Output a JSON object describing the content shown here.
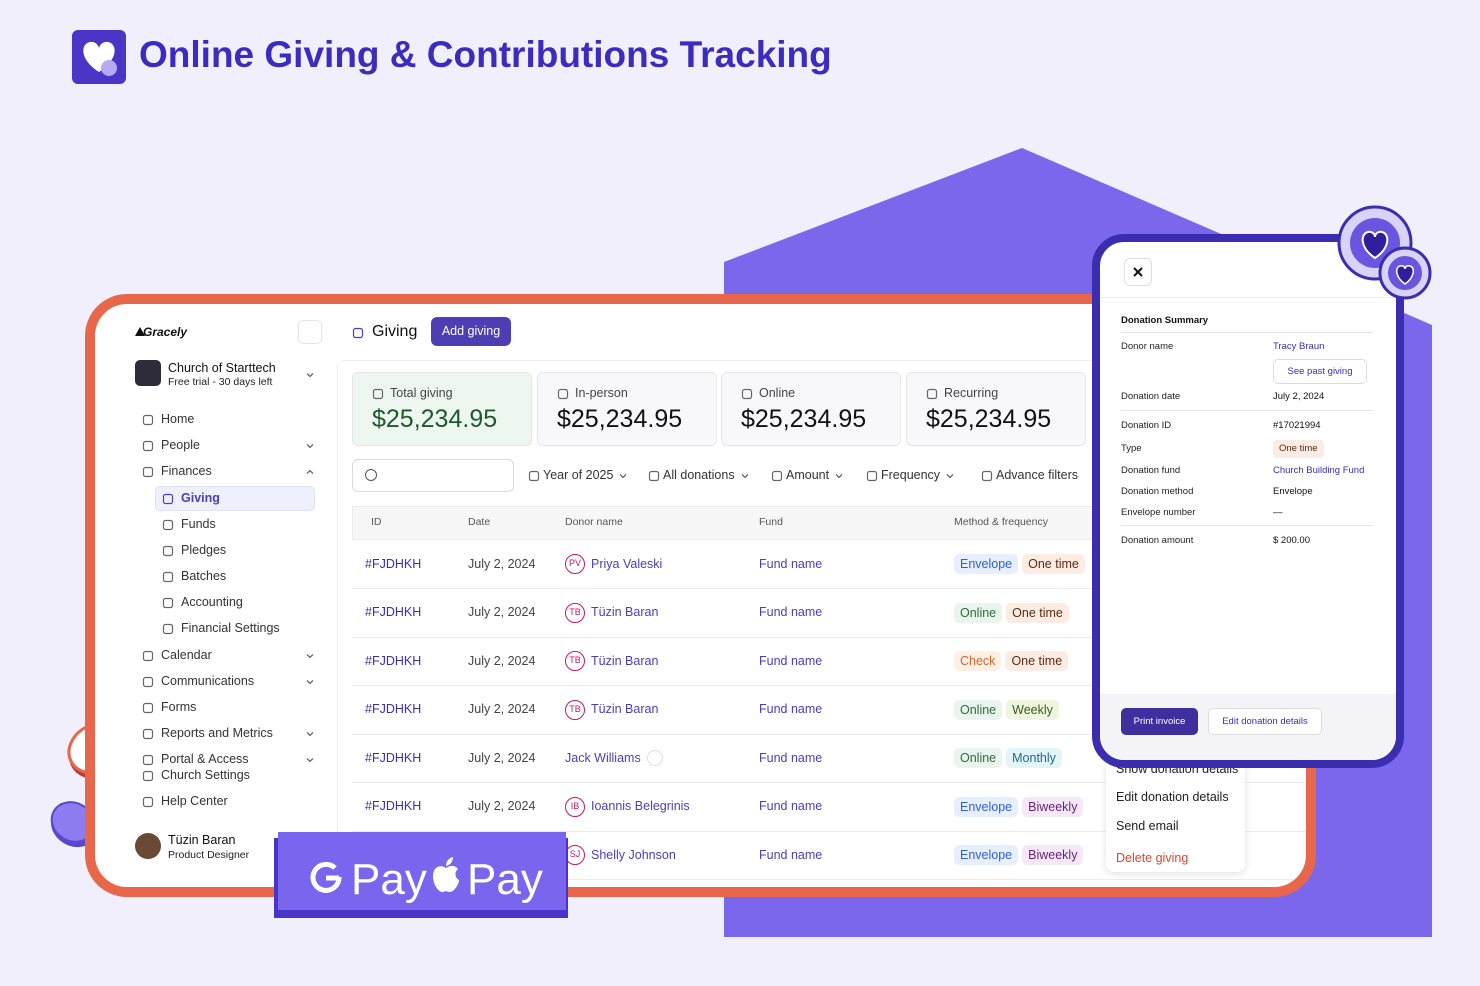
{
  "header": {
    "title": "Online Giving & Contributions Tracking"
  },
  "sidebar": {
    "brand": "Gracely",
    "org_name": "Church of Starttech",
    "org_plan": "Free trial - 30 days left",
    "nav": [
      {
        "label": "Home"
      },
      {
        "label": "People",
        "expandable": true
      },
      {
        "label": "Finances",
        "expandable": true,
        "children": [
          "Giving",
          "Funds",
          "Pledges",
          "Batches",
          "Accounting",
          "Financial Settings"
        ]
      },
      {
        "label": "Calendar",
        "expandable": true
      },
      {
        "label": "Communications",
        "expandable": true
      },
      {
        "label": "Forms"
      },
      {
        "label": "Reports and Metrics",
        "expandable": true
      },
      {
        "label": "Portal & Access",
        "expandable": true
      }
    ],
    "bottom_nav": [
      "Church Settings",
      "Help Center"
    ],
    "user": {
      "name": "Tüzin Baran",
      "role": "Product Designer"
    }
  },
  "main": {
    "title": "Giving",
    "add_button": "Add giving",
    "stats": [
      {
        "label": "Total giving",
        "value": "$25,234.95"
      },
      {
        "label": "In-person",
        "value": "$25,234.95"
      },
      {
        "label": "Online",
        "value": "$25,234.95"
      },
      {
        "label": "Recurring",
        "value": "$25,234.95"
      }
    ],
    "filters": [
      "Year of 2025",
      "All donations",
      "Amount",
      "Frequency",
      "Advance filters"
    ],
    "table": {
      "columns": [
        "ID",
        "Date",
        "Donor name",
        "Fund",
        "Method & frequency"
      ],
      "rows": [
        {
          "id": "#FJDHKH",
          "date": "July 2, 2024",
          "initials": "PV",
          "donor": "Priya Valeski",
          "fund": "Fund name",
          "method": "Envelope",
          "frequency": "One time"
        },
        {
          "id": "#FJDHKH",
          "date": "July 2, 2024",
          "initials": "TB",
          "donor": "Tüzin Baran",
          "fund": "Fund name",
          "method": "Online",
          "frequency": "One time"
        },
        {
          "id": "#FJDHKH",
          "date": "July 2, 2024",
          "initials": "TB",
          "donor": "Tüzin Baran",
          "fund": "Fund name",
          "method": "Check",
          "frequency": "One time"
        },
        {
          "id": "#FJDHKH",
          "date": "July 2, 2024",
          "initials": "TB",
          "donor": "Tüzin Baran",
          "fund": "Fund name",
          "method": "Online",
          "frequency": "Weekly"
        },
        {
          "id": "#FJDHKH",
          "date": "July 2, 2024",
          "donor": "Jack Williams",
          "fund": "Fund name",
          "method": "Online",
          "frequency": "Monthly"
        },
        {
          "id": "#FJDHKH",
          "date": "July 2, 2024",
          "initials": "IB",
          "donor": "Ioannis Belegrinis",
          "fund": "Fund name",
          "method": "Envelope",
          "frequency": "Biweekly"
        },
        {
          "id": "#FJDHKH",
          "date": "July 2, 2024",
          "initials": "SJ",
          "donor": "Shelly Johnson",
          "fund": "Fund name",
          "method": "Envelope",
          "frequency": "Biweekly"
        }
      ]
    }
  },
  "context_menu": [
    "Show donation details",
    "Edit donation details",
    "Send email",
    "Delete giving"
  ],
  "summary": {
    "title": "Donation Summary",
    "past_button": "See past giving",
    "fields": [
      {
        "label": "Donor name",
        "value": "Tracy Braun",
        "style": "link"
      },
      {
        "label": "Donation date",
        "value": "July 2, 2024"
      },
      {
        "label": "Donation ID",
        "value": "#17021994"
      },
      {
        "label": "Type",
        "value": "One time",
        "style": "badge"
      },
      {
        "label": "Donation fund",
        "value": "Church Building Fund",
        "style": "link"
      },
      {
        "label": "Donation method",
        "value": "Envelope"
      },
      {
        "label": "Envelope number",
        "value": "—"
      },
      {
        "label": "Donation amount",
        "value": "$ 200.00"
      }
    ],
    "buttons": [
      "Print invoice",
      "Edit donation details"
    ]
  },
  "payment": [
    "Pay",
    "Pay"
  ]
}
